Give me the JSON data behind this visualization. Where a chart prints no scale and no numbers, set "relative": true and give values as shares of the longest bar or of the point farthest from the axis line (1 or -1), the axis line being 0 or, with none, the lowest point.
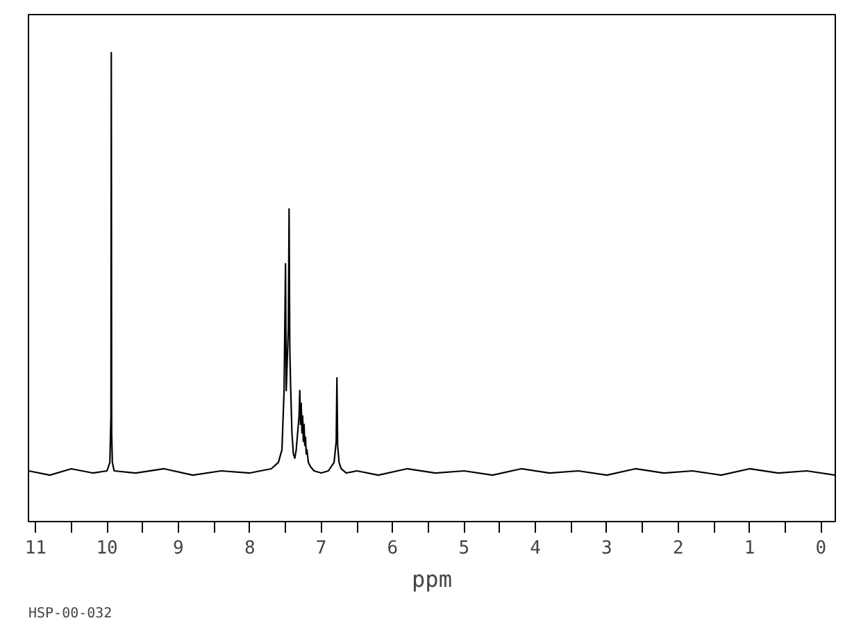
{
  "chart_data": {
    "type": "line",
    "relative": true,
    "xlabel": "ppm",
    "annotations": [
      "HSP-00-032"
    ],
    "x": [
      11.1,
      10.8,
      10.5,
      10.2,
      10.0,
      9.96,
      9.945,
      9.94,
      9.935,
      9.925,
      9.9,
      9.6,
      9.2,
      8.8,
      8.4,
      8.0,
      7.7,
      7.6,
      7.55,
      7.52,
      7.5,
      7.49,
      7.48,
      7.46,
      7.45,
      7.44,
      7.43,
      7.41,
      7.39,
      7.37,
      7.35,
      7.33,
      7.31,
      7.3,
      7.29,
      7.28,
      7.27,
      7.26,
      7.25,
      7.24,
      7.23,
      7.22,
      7.21,
      7.2,
      7.18,
      7.15,
      7.1,
      7.0,
      6.9,
      6.82,
      6.79,
      6.78,
      6.77,
      6.75,
      6.72,
      6.65,
      6.5,
      6.2,
      5.8,
      5.4,
      5.0,
      4.6,
      4.2,
      3.8,
      3.4,
      3.0,
      2.6,
      2.2,
      1.8,
      1.4,
      1.0,
      0.6,
      0.2,
      -0.2
    ],
    "series": [
      {
        "color": "#000000",
        "values": [
          0.01,
          0.0,
          0.015,
          0.005,
          0.01,
          0.03,
          0.14,
          1.0,
          0.1,
          0.03,
          0.01,
          0.005,
          0.015,
          0.0,
          0.01,
          0.005,
          0.015,
          0.03,
          0.06,
          0.2,
          0.5,
          0.2,
          0.25,
          0.35,
          0.63,
          0.3,
          0.22,
          0.1,
          0.05,
          0.04,
          0.06,
          0.1,
          0.14,
          0.2,
          0.12,
          0.17,
          0.1,
          0.14,
          0.08,
          0.12,
          0.07,
          0.09,
          0.05,
          0.06,
          0.03,
          0.02,
          0.01,
          0.005,
          0.01,
          0.03,
          0.08,
          0.23,
          0.07,
          0.03,
          0.015,
          0.005,
          0.01,
          0.0,
          0.015,
          0.005,
          0.01,
          0.0,
          0.015,
          0.005,
          0.01,
          0.0,
          0.015,
          0.005,
          0.01,
          0.0,
          0.015,
          0.005,
          0.01,
          0.0
        ]
      }
    ],
    "xlim": [
      11.1,
      -0.2
    ],
    "xticks": [
      11,
      10,
      9,
      8,
      7,
      6,
      5,
      4,
      3,
      2,
      1,
      0
    ],
    "grid": false,
    "tick_labels": "x",
    "marker": "none",
    "line_style": "solid"
  }
}
